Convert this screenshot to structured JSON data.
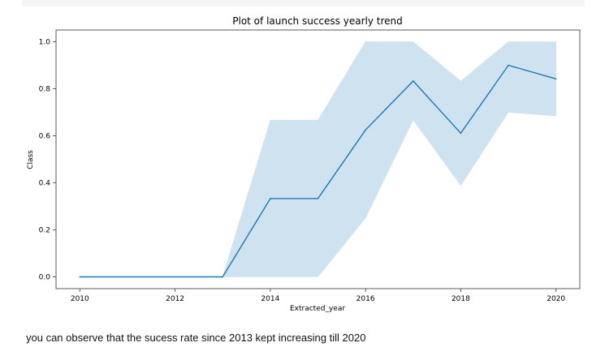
{
  "chart_data": {
    "type": "line",
    "title": "Plot of launch success yearly trend",
    "xlabel": "Extracted_year",
    "ylabel": "Class",
    "x": [
      2010,
      2012,
      2013,
      2014,
      2015,
      2016,
      2017,
      2018,
      2019,
      2020
    ],
    "series": [
      {
        "values": [
          0.0,
          0.0,
          0.0,
          0.333,
          0.333,
          0.625,
          0.833,
          0.611,
          0.9,
          0.842
        ],
        "ci_lower": [
          0.0,
          0.0,
          0.0,
          0.0,
          0.0,
          0.25,
          0.667,
          0.389,
          0.7,
          0.684
        ],
        "ci_upper": [
          0.0,
          0.0,
          0.0,
          0.667,
          0.667,
          1.0,
          1.0,
          0.833,
          1.0,
          1.0
        ],
        "color": "#1f77b4",
        "band_color": "#cfe2f0"
      }
    ],
    "xticks": [
      "2010",
      "2012",
      "2014",
      "2016",
      "2018",
      "2020"
    ],
    "yticks": [
      "0.0",
      "0.2",
      "0.4",
      "0.6",
      "0.8",
      "1.0"
    ],
    "xlim": [
      2009.5,
      2020.5
    ],
    "ylim": [
      -0.05,
      1.05
    ],
    "grid": false,
    "legend": false
  },
  "note": "you can observe that the sucess rate since 2013 kept increasing till 2020"
}
